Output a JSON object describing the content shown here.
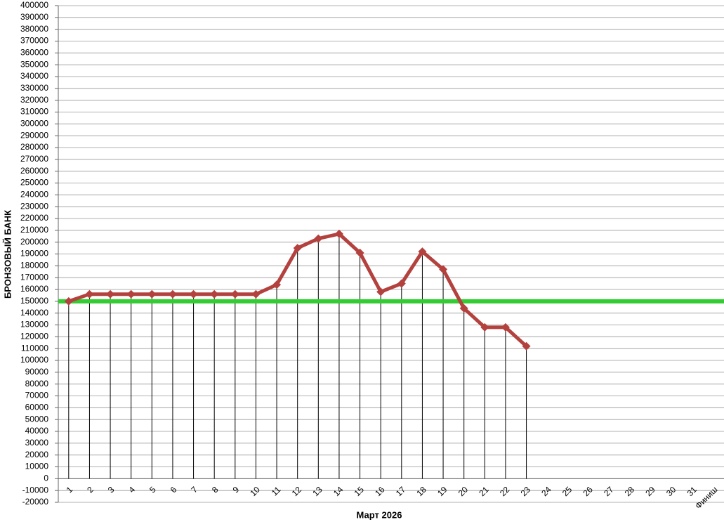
{
  "chart_data": {
    "type": "line",
    "xlabel": "Март 2026",
    "ylabel": "БРОНЗОВЫЙ БАНК",
    "categories": [
      "1",
      "2",
      "3",
      "4",
      "5",
      "6",
      "7",
      "8",
      "9",
      "10",
      "11",
      "12",
      "13",
      "14",
      "15",
      "16",
      "17",
      "18",
      "19",
      "20",
      "21",
      "22",
      "23",
      "24",
      "25",
      "26",
      "27",
      "28",
      "29",
      "30",
      "31",
      "Финиш"
    ],
    "series": [
      {
        "color": "#b3413e",
        "values": [
          150000,
          156000,
          156000,
          156000,
          156000,
          156000,
          156000,
          156000,
          156000,
          156000,
          164000,
          195000,
          203000,
          207000,
          191000,
          158000,
          165000,
          192000,
          177000,
          144000,
          128000,
          128000,
          112000,
          null,
          null,
          null,
          null,
          null,
          null,
          null,
          null,
          null
        ]
      }
    ],
    "reference_line": {
      "value": 150000,
      "color": "#33cc33"
    },
    "ylim": [
      -20000,
      400000
    ],
    "yticks": [
      -20000,
      -10000,
      0,
      10000,
      20000,
      30000,
      40000,
      50000,
      60000,
      70000,
      80000,
      90000,
      100000,
      110000,
      120000,
      130000,
      140000,
      150000,
      160000,
      170000,
      180000,
      190000,
      200000,
      210000,
      220000,
      230000,
      240000,
      250000,
      260000,
      270000,
      280000,
      290000,
      300000,
      310000,
      320000,
      330000,
      340000,
      350000,
      360000,
      370000,
      380000,
      390000,
      400000
    ],
    "grid": true
  }
}
